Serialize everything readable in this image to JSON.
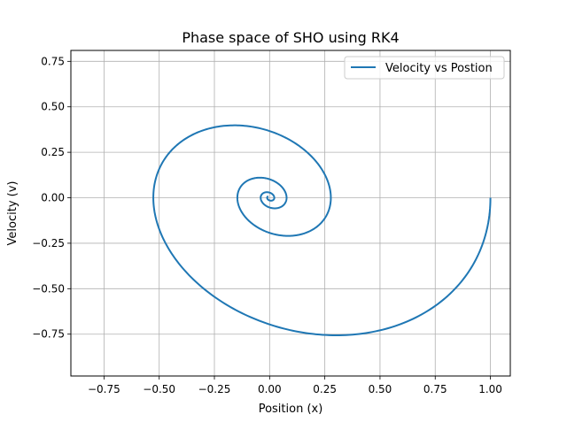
{
  "chart_data": {
    "type": "line",
    "title": "Phase space of SHO using RK4",
    "xlabel": "Position (x)",
    "ylabel": "Velocity (v)",
    "xlim": [
      -0.9,
      1.09
    ],
    "ylim": [
      -0.98,
      0.81
    ],
    "x_ticks": [
      -0.75,
      -0.5,
      -0.25,
      0.0,
      0.25,
      0.5,
      0.75,
      1.0
    ],
    "x_tick_labels": [
      "−0.75",
      "−0.50",
      "−0.25",
      "0.00",
      "0.25",
      "0.50",
      "0.75",
      "1.00"
    ],
    "y_ticks": [
      -0.75,
      -0.5,
      -0.25,
      0.0,
      0.25,
      0.5,
      0.75
    ],
    "y_tick_labels": [
      "−0.75",
      "−0.50",
      "−0.25",
      "0.00",
      "0.25",
      "0.50",
      "0.75"
    ],
    "grid": true,
    "legend_position": "top-right",
    "series": [
      {
        "name": "Velocity vs Postion",
        "color": "#1f77b4",
        "model": "damped_oscillator_spiral",
        "x0": 1.0,
        "v0": 0.0,
        "gamma": 0.2,
        "omega0": 1.0,
        "t_end": 23.5
      }
    ]
  }
}
